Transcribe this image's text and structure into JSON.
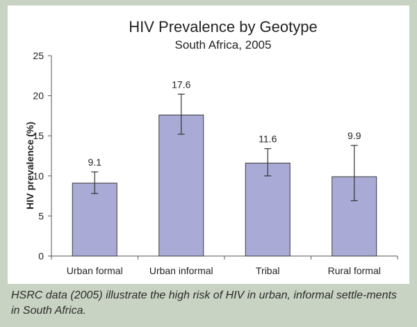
{
  "chart_data": {
    "type": "bar",
    "title": "HIV Prevalence by Geotype",
    "subtitle": "South Africa, 2005",
    "xlabel": "",
    "ylabel": "HIV prevalence (%)",
    "categories": [
      "Urban formal",
      "Urban informal",
      "Tribal",
      "Rural formal"
    ],
    "values": [
      9.1,
      17.6,
      11.6,
      9.9
    ],
    "data_labels": [
      "9.1",
      "17.6",
      "11.6",
      "9.9"
    ],
    "error_bars": [
      {
        "low": 7.8,
        "high": 10.5
      },
      {
        "low": 15.2,
        "high": 20.2
      },
      {
        "low": 10.0,
        "high": 13.4
      },
      {
        "low": 6.9,
        "high": 13.8
      }
    ],
    "ylim": [
      0,
      25
    ],
    "yticks": [
      0,
      5,
      10,
      15,
      20,
      25
    ],
    "grid": false,
    "legend": "none",
    "bar_color": "#aaaad6",
    "bar_edge_color": "#3a3a3a"
  },
  "caption": "HSRC data (2005) illustrate the high risk of HIV in urban, informal settle-ments in South Africa."
}
